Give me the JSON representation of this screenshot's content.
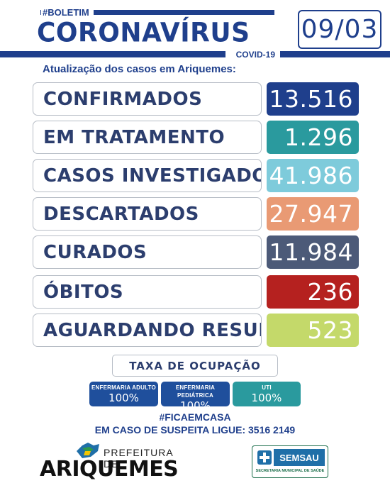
{
  "header": {
    "tag": "#BOLETIM",
    "title": "CORONAVÍRUS",
    "subtitle_small": "COVID-19",
    "date": "09/03",
    "update_text": "Atualização dos casos em Ariquemes:"
  },
  "stats": [
    {
      "label": "CONFIRMADOS",
      "value": "13.516",
      "color": "#1f3f8c"
    },
    {
      "label": "EM TRATAMENTO",
      "value": "1.296",
      "color": "#2a9a9e"
    },
    {
      "label": "CASOS INVESTIGADOS",
      "value": "41.986",
      "color": "#7ecbdb"
    },
    {
      "label": "DESCARTADOS",
      "value": "27.947",
      "color": "#e99a74"
    },
    {
      "label": "CURADOS",
      "value": "11.984",
      "color": "#4c5a78"
    },
    {
      "label": "ÓBITOS",
      "value": "236",
      "color": "#b5211f"
    },
    {
      "label": "AGUARDANDO RESULTADO",
      "value": "523",
      "color": "#c4d96a"
    }
  ],
  "occupancy": {
    "title": "TAXA DE OCUPAÇÃO",
    "items": [
      {
        "label": "ENFERMARIA ADULTO",
        "value": "100%",
        "color": "#1f4f9c"
      },
      {
        "label": "ENFERMARIA PEDIÁTRICA",
        "value": "100%",
        "color": "#1f4f9c"
      },
      {
        "label": "UTI",
        "value": "100%",
        "color": "#2a9a9e"
      }
    ]
  },
  "footer": {
    "hashtag": "#FICAEMCASA",
    "phone_line": "EM CASO DE SUSPEITA LIGUE: 3516 2149",
    "pref_top": "PREFEITURA DE",
    "pref_main": "ARIQUEMES",
    "semsau_name": "SEMSAU",
    "semsau_sub": "SECRETARIA MUNICIPAL DE SAÚDE"
  }
}
